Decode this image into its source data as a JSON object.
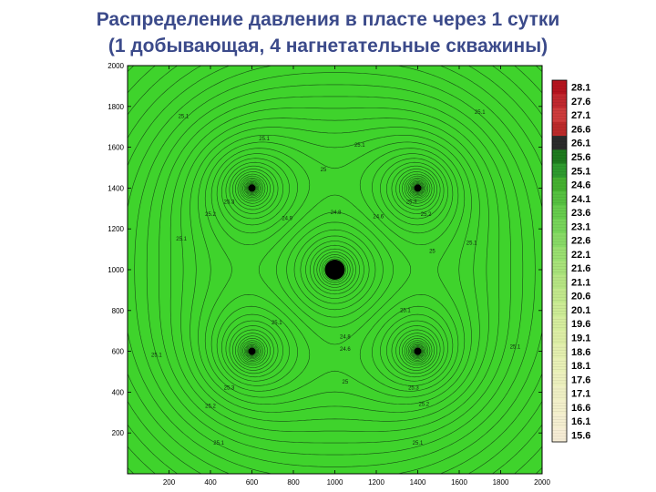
{
  "title_line1": "Распределение давления в пласте через 1 сутки",
  "title_line2": "(1 добывающая, 4 нагнетательные скважины)",
  "chart_data": {
    "type": "heatmap",
    "subtype": "contour",
    "x_ticks": [
      200,
      400,
      600,
      800,
      1000,
      1200,
      1400,
      1600,
      1800,
      2000
    ],
    "y_ticks": [
      200,
      400,
      600,
      800,
      1000,
      1200,
      1400,
      1600,
      1800,
      2000
    ],
    "xlim": [
      0,
      2000
    ],
    "ylim": [
      0,
      2000
    ],
    "wells": [
      {
        "role": "producer",
        "x": 1000,
        "y": 1000
      },
      {
        "role": "injector",
        "x": 600,
        "y": 1400
      },
      {
        "role": "injector",
        "x": 1400,
        "y": 1400
      },
      {
        "role": "injector",
        "x": 600,
        "y": 600
      },
      {
        "role": "injector",
        "x": 1400,
        "y": 600
      }
    ],
    "contour_labels": [
      {
        "text": "25.1",
        "x": 270,
        "y": 1750
      },
      {
        "text": "25.1",
        "x": 1700,
        "y": 1770
      },
      {
        "text": "25.1",
        "x": 660,
        "y": 1640
      },
      {
        "text": "25.1",
        "x": 1120,
        "y": 1610
      },
      {
        "text": "25",
        "x": 945,
        "y": 1490
      },
      {
        "text": "25.3",
        "x": 490,
        "y": 1330
      },
      {
        "text": "25.2",
        "x": 400,
        "y": 1270
      },
      {
        "text": "24.9",
        "x": 770,
        "y": 1250
      },
      {
        "text": "24.8",
        "x": 1005,
        "y": 1280
      },
      {
        "text": "24.6",
        "x": 1210,
        "y": 1260
      },
      {
        "text": "25.3",
        "x": 1370,
        "y": 1330
      },
      {
        "text": "25.2",
        "x": 1440,
        "y": 1270
      },
      {
        "text": "25.1",
        "x": 260,
        "y": 1150
      },
      {
        "text": "25.1",
        "x": 1660,
        "y": 1130
      },
      {
        "text": "25",
        "x": 1470,
        "y": 1090
      },
      {
        "text": "25.1",
        "x": 140,
        "y": 580
      },
      {
        "text": "25.1",
        "x": 720,
        "y": 740
      },
      {
        "text": "25.1",
        "x": 1340,
        "y": 800
      },
      {
        "text": "25.1",
        "x": 1870,
        "y": 620
      },
      {
        "text": "24.8",
        "x": 1050,
        "y": 670
      },
      {
        "text": "24.6",
        "x": 1050,
        "y": 610
      },
      {
        "text": "25",
        "x": 1050,
        "y": 450
      },
      {
        "text": "25.3",
        "x": 490,
        "y": 420
      },
      {
        "text": "25.2",
        "x": 400,
        "y": 330
      },
      {
        "text": "25.3",
        "x": 1380,
        "y": 420
      },
      {
        "text": "25.2",
        "x": 1430,
        "y": 340
      },
      {
        "text": "25.1",
        "x": 440,
        "y": 150
      },
      {
        "text": "25.1",
        "x": 1400,
        "y": 150
      }
    ],
    "colorbar": {
      "labels": [
        "28.1",
        "27.6",
        "27.1",
        "26.6",
        "26.1",
        "25.6",
        "25.1",
        "24.6",
        "24.1",
        "23.6",
        "23.1",
        "22.6",
        "22.1",
        "21.6",
        "21.1",
        "20.6",
        "20.1",
        "19.6",
        "19.1",
        "18.6",
        "18.1",
        "17.6",
        "17.1",
        "16.6",
        "16.1",
        "15.6"
      ],
      "colors": [
        "#b4141e",
        "#c0282e",
        "#cd3c3c",
        "#bb2a2a",
        "#2b2b2b",
        "#1e7a1e",
        "#2e9a2e",
        "#45b030",
        "#55c040",
        "#66cc4d",
        "#77d45a",
        "#88da66",
        "#99df70",
        "#a8e27a",
        "#b6e583",
        "#c2e88c",
        "#cceb95",
        "#d5ed9d",
        "#ddeea5",
        "#e3efae",
        "#e8f0b6",
        "#ecf0bd",
        "#eff0c4",
        "#f2efca",
        "#f4eed0",
        "#f6edd5"
      ]
    },
    "background_color": "#3fd32c",
    "contour_color": "#123812"
  }
}
